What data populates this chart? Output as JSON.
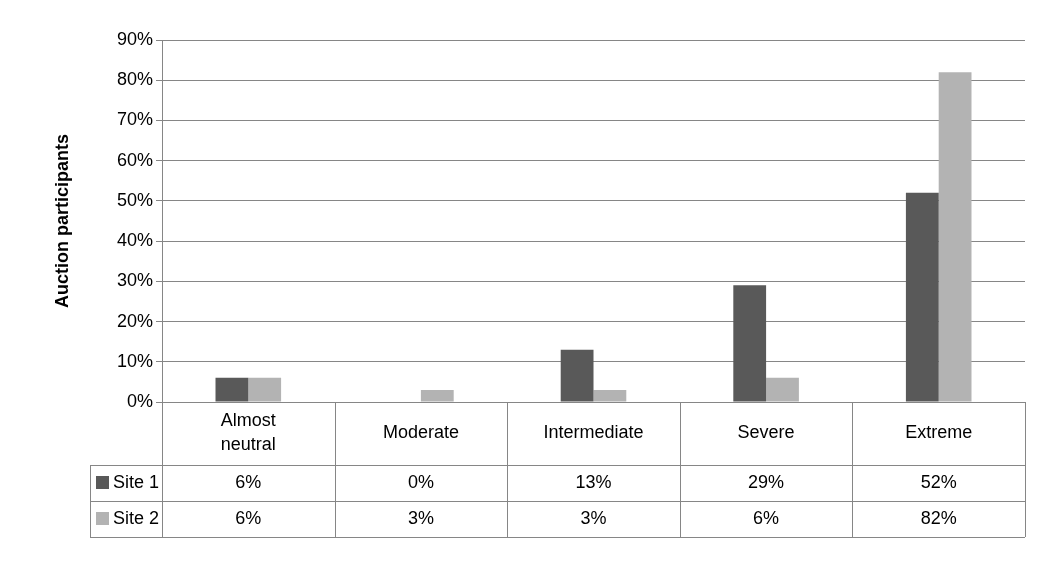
{
  "chart_data": {
    "type": "bar",
    "ylabel": "Auction participants",
    "categories": [
      "Almost neutral",
      "Moderate",
      "Intermediate",
      "Severe",
      "Extreme"
    ],
    "series": [
      {
        "name": "Site 1",
        "color": "#595959",
        "values": [
          6,
          0,
          13,
          29,
          52
        ],
        "value_labels": [
          "6%",
          "0%",
          "13%",
          "29%",
          "52%"
        ]
      },
      {
        "name": "Site 2",
        "color": "#b3b3b3",
        "values": [
          6,
          3,
          3,
          6,
          82
        ],
        "value_labels": [
          "6%",
          "3%",
          "3%",
          "6%",
          "82%"
        ]
      }
    ],
    "ylim": [
      0,
      90
    ],
    "yticks": [
      {
        "value": 0,
        "label": "0%"
      },
      {
        "value": 10,
        "label": "10%"
      },
      {
        "value": 20,
        "label": "20%"
      },
      {
        "value": 30,
        "label": "30%"
      },
      {
        "value": 40,
        "label": "40%"
      },
      {
        "value": 50,
        "label": "50%"
      },
      {
        "value": 60,
        "label": "60%"
      },
      {
        "value": 70,
        "label": "70%"
      },
      {
        "value": 80,
        "label": "80%"
      },
      {
        "value": 90,
        "label": "90%"
      }
    ],
    "grid": "y",
    "legend": "bottom left"
  }
}
